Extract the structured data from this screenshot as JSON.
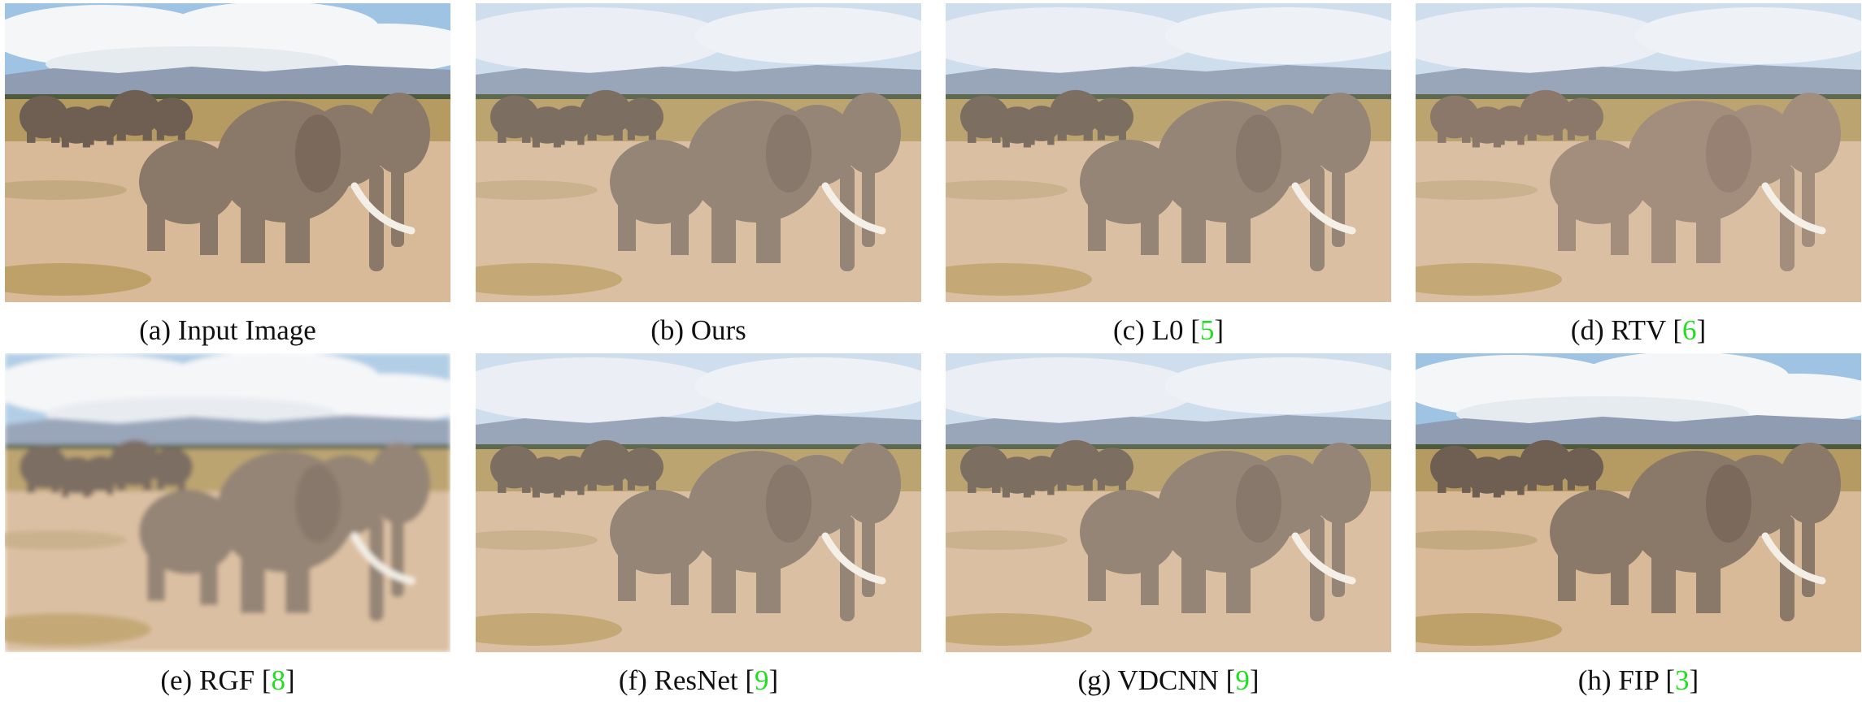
{
  "panels": [
    {
      "letter": "(a)",
      "name": "Input Image",
      "cite": "",
      "variant": "input"
    },
    {
      "letter": "(b)",
      "name": "Ours",
      "cite": "",
      "variant": "smooth"
    },
    {
      "letter": "(c)",
      "name": "L0",
      "cite": "5",
      "variant": "smooth"
    },
    {
      "letter": "(d)",
      "name": "RTV",
      "cite": "6",
      "variant": "rtv"
    },
    {
      "letter": "(e)",
      "name": "RGF",
      "cite": "8",
      "variant": "blur"
    },
    {
      "letter": "(f)",
      "name": "ResNet",
      "cite": "9",
      "variant": "smooth"
    },
    {
      "letter": "(g)",
      "name": "VDCNN",
      "cite": "9",
      "variant": "smooth"
    },
    {
      "letter": "(h)",
      "name": "FIP",
      "cite": "3",
      "variant": "input"
    }
  ],
  "colors": {
    "citation": "#22dd22",
    "sky_top": "#9ec3e3",
    "cloud": "#f4f6f8",
    "mountain": "#8f9cb2",
    "savanna": "#b59b62",
    "ground": "#d8b998",
    "elephant": "#8a7868",
    "tusk": "#f3efe6"
  }
}
